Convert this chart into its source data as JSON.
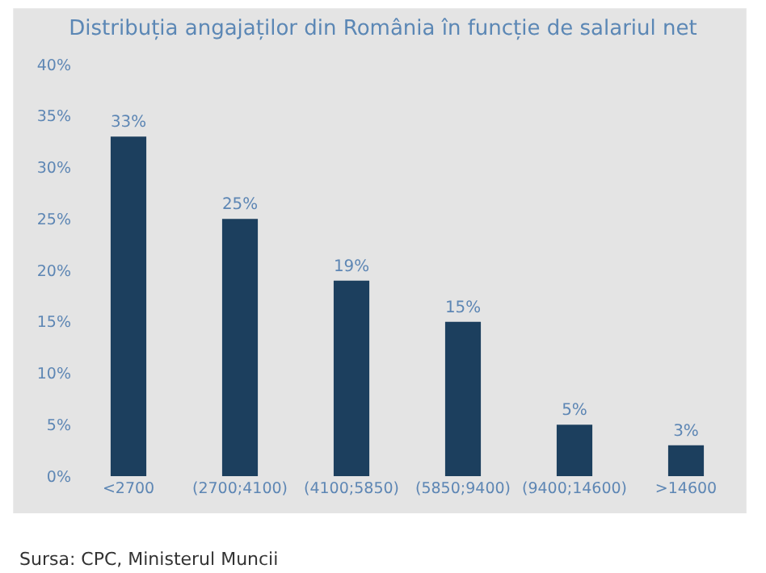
{
  "chart_data": {
    "type": "bar",
    "title": "Distribuția angajaților din România în funcție de salariul net",
    "categories": [
      "<2700",
      "(2700;4100)",
      "(4100;5850)",
      "(5850;9400)",
      "(9400;14600)",
      ">14600"
    ],
    "values": [
      33,
      25,
      19,
      15,
      5,
      3
    ],
    "value_labels": [
      "33%",
      "25%",
      "19%",
      "15%",
      "5%",
      "3%"
    ],
    "color": "#1c3f5e",
    "ylim": [
      0,
      40
    ],
    "yticks": [
      {
        "value": 0,
        "label": "0%"
      },
      {
        "value": 5,
        "label": "5%"
      },
      {
        "value": 10,
        "label": "10%"
      },
      {
        "value": 15,
        "label": "15%"
      },
      {
        "value": 20,
        "label": "20%"
      },
      {
        "value": 25,
        "label": "25%"
      },
      {
        "value": 30,
        "label": "30%"
      },
      {
        "value": 35,
        "label": "35%"
      },
      {
        "value": 40,
        "label": "40%"
      }
    ],
    "grid": false,
    "annotations": [
      "Sursa: CPC, Ministerul Muncii"
    ]
  }
}
